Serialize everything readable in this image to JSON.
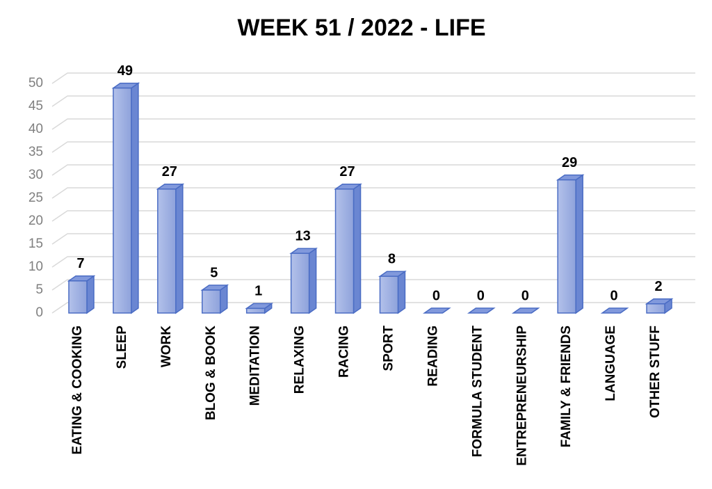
{
  "chart_data": {
    "type": "bar3d",
    "title": "WEEK 51 / 2022 - LIFE",
    "categories": [
      "EATING & COOKING",
      "SLEEP",
      "WORK",
      "BLOG & BOOK",
      "MEDITATION",
      "RELAXING",
      "RACING",
      "SPORT",
      "READING",
      "FORMULA STUDENT",
      "ENTREPRENEURSHIP",
      "FAMILY & FRIENDS",
      "LANGUAGE",
      "OTHER STUFF"
    ],
    "values": [
      7,
      49,
      27,
      5,
      1,
      13,
      27,
      8,
      0,
      0,
      0,
      29,
      0,
      2
    ],
    "color": "#9aadE0",
    "ylim": [
      0,
      50
    ],
    "yticks": [
      0,
      5,
      10,
      15,
      20,
      25,
      30,
      35,
      40,
      45,
      50
    ],
    "grid": true
  }
}
